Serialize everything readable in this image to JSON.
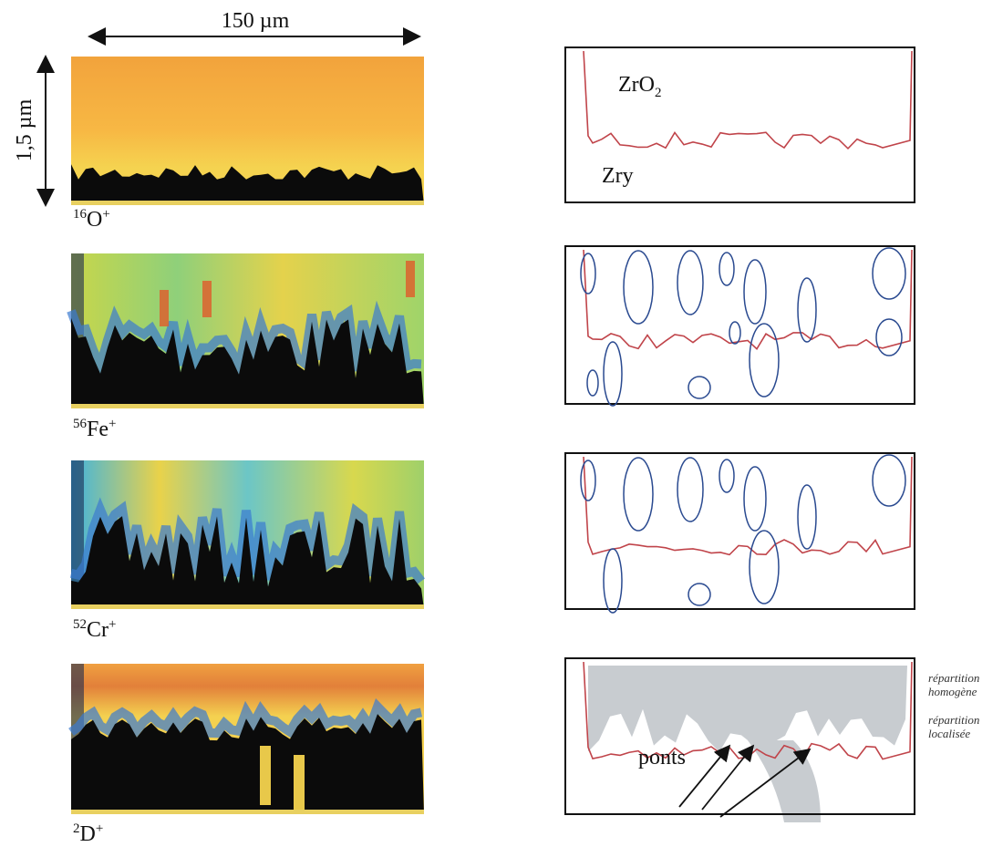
{
  "scale": {
    "width": "150 µm",
    "depth": "1,5 µm"
  },
  "maps": [
    {
      "mass": "16",
      "element": "O",
      "charge": "+"
    },
    {
      "mass": "56",
      "element": "Fe",
      "charge": "+"
    },
    {
      "mass": "52",
      "element": "Cr",
      "charge": "+"
    },
    {
      "mass": "2",
      "element": "D",
      "charge": "+"
    }
  ],
  "sketch": {
    "oxide": {
      "base": "ZrO",
      "sub": "2"
    },
    "metal": "Zry",
    "homogeneous": [
      "répartition",
      "homogène"
    ],
    "localized": [
      "répartition",
      "localisée"
    ],
    "bridges": "ponts"
  }
}
